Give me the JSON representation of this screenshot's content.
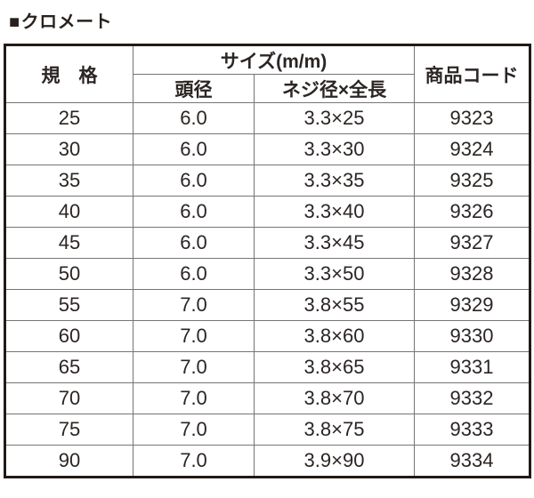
{
  "title": {
    "bullet": "■",
    "text": "クロメート"
  },
  "table": {
    "headers": {
      "spec": "規　格",
      "size_group": "サイズ(m/m)",
      "head_diameter": "頭径",
      "thread_dia_x_length": "ネジ径×全長",
      "product_code": "商品コード"
    },
    "columns": [
      "spec",
      "head_diameter",
      "thread_dia_x_length",
      "product_code"
    ],
    "rows": [
      {
        "spec": "25",
        "head_diameter": "6.0",
        "thread_dia_x_length": "3.3×25",
        "product_code": "9323"
      },
      {
        "spec": "30",
        "head_diameter": "6.0",
        "thread_dia_x_length": "3.3×30",
        "product_code": "9324"
      },
      {
        "spec": "35",
        "head_diameter": "6.0",
        "thread_dia_x_length": "3.3×35",
        "product_code": "9325"
      },
      {
        "spec": "40",
        "head_diameter": "6.0",
        "thread_dia_x_length": "3.3×40",
        "product_code": "9326"
      },
      {
        "spec": "45",
        "head_diameter": "6.0",
        "thread_dia_x_length": "3.3×45",
        "product_code": "9327"
      },
      {
        "spec": "50",
        "head_diameter": "6.0",
        "thread_dia_x_length": "3.3×50",
        "product_code": "9328"
      },
      {
        "spec": "55",
        "head_diameter": "7.0",
        "thread_dia_x_length": "3.8×55",
        "product_code": "9329"
      },
      {
        "spec": "60",
        "head_diameter": "7.0",
        "thread_dia_x_length": "3.8×60",
        "product_code": "9330"
      },
      {
        "spec": "65",
        "head_diameter": "7.0",
        "thread_dia_x_length": "3.8×65",
        "product_code": "9331"
      },
      {
        "spec": "70",
        "head_diameter": "7.0",
        "thread_dia_x_length": "3.8×70",
        "product_code": "9332"
      },
      {
        "spec": "75",
        "head_diameter": "7.0",
        "thread_dia_x_length": "3.8×75",
        "product_code": "9333"
      },
      {
        "spec": "90",
        "head_diameter": "7.0",
        "thread_dia_x_length": "3.9×90",
        "product_code": "9334"
      }
    ]
  },
  "colors": {
    "text": "#2b2523",
    "grid_line": "#757575",
    "outer_border": "#211a16",
    "background": "#ffffff"
  }
}
